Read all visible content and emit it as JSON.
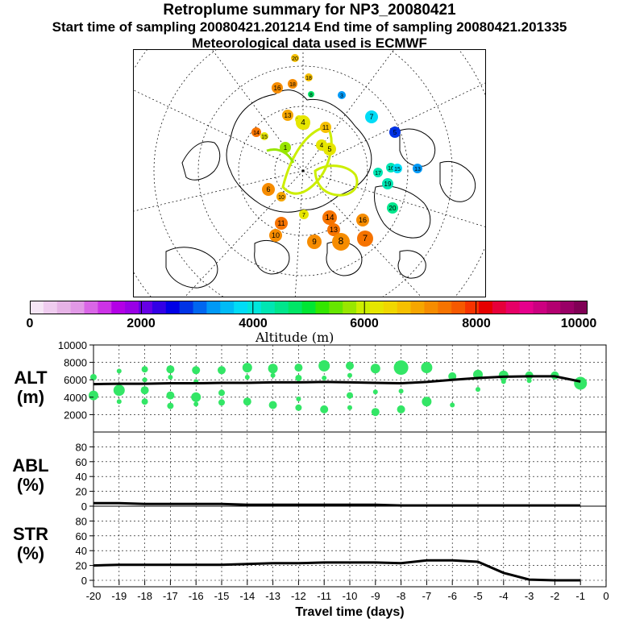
{
  "header": {
    "title": "Retroplume summary for NP3_20080421",
    "sampling_line": "Start time of sampling 20080421.201214     End time of sampling 20080421.201335",
    "met_line": "Meteorological data used is ECMWF"
  },
  "colorbar": {
    "label": "Altitude (m)",
    "tick_labels": [
      "0",
      "2000",
      "4000",
      "6000",
      "8000",
      "10000"
    ],
    "colors": [
      "#f6e6f6",
      "#efccef",
      "#e6b3e6",
      "#e199e6",
      "#d966e6",
      "#cc33e6",
      "#b300e6",
      "#9900e6",
      "#6600e6",
      "#3300e6",
      "#0000e6",
      "#0033e6",
      "#0066f0",
      "#0099f6",
      "#00bbf6",
      "#00dcf6",
      "#00e6dc",
      "#00e6b3",
      "#00e68c",
      "#00e666",
      "#00e633",
      "#33e600",
      "#66e600",
      "#99e600",
      "#ccee00",
      "#e6e600",
      "#f0d700",
      "#f6c000",
      "#f6a600",
      "#f68c00",
      "#f67300",
      "#f65900",
      "#f63300",
      "#e60000",
      "#e6003a",
      "#e60066",
      "#e6008c",
      "#cc0080",
      "#b30070",
      "#990066",
      "#800055"
    ]
  },
  "map_data": {
    "markers": [
      {
        "day": "20",
        "color": "#f6c000",
        "r": 5
      },
      {
        "day": "18",
        "color": "#f68c00",
        "r": 6
      },
      {
        "day": "16",
        "color": "#f68c00",
        "r": 7
      },
      {
        "day": "18",
        "color": "#f6c000",
        "r": 5
      },
      {
        "day": "8",
        "color": "#00e666",
        "r": 4
      },
      {
        "day": "3",
        "color": "#0099f6",
        "r": 5
      },
      {
        "day": "7",
        "color": "#00dcf6",
        "r": 8
      },
      {
        "day": "5",
        "color": "#0033e6",
        "r": 7
      },
      {
        "day": "13",
        "color": "#f6a600",
        "r": 7
      },
      {
        "day": "13",
        "color": "#e6e600",
        "r": 5
      },
      {
        "day": "12",
        "color": "#f6c000",
        "r": 6
      },
      {
        "day": "14",
        "color": "#f67300",
        "r": 6
      },
      {
        "day": "15",
        "color": "#e6e600",
        "r": 5
      },
      {
        "day": "4",
        "color": "#e6e600",
        "r": 9
      },
      {
        "day": "11",
        "color": "#f6c000",
        "r": 7
      },
      {
        "day": "16",
        "color": "#00e6b3",
        "r": 6
      },
      {
        "day": "15",
        "color": "#00dcf6",
        "r": 6
      },
      {
        "day": "13",
        "color": "#0099f6",
        "r": 6
      },
      {
        "day": "17",
        "color": "#00e6b3",
        "r": 6
      },
      {
        "day": "19",
        "color": "#00e6b3",
        "r": 7
      },
      {
        "day": "20",
        "color": "#00e68c",
        "r": 7
      },
      {
        "day": "16",
        "color": "#f68c00",
        "r": 8
      },
      {
        "day": "14",
        "color": "#f67300",
        "r": 9
      },
      {
        "day": "13",
        "color": "#f67300",
        "r": 8
      },
      {
        "day": "11",
        "color": "#f67300",
        "r": 8
      },
      {
        "day": "10",
        "color": "#f68c00",
        "r": 8
      },
      {
        "day": "9",
        "color": "#f68c00",
        "r": 9
      },
      {
        "day": "8",
        "color": "#f68c00",
        "r": 11
      },
      {
        "day": "7",
        "color": "#f67300",
        "r": 10
      },
      {
        "day": "6",
        "color": "#f68c00",
        "r": 8
      },
      {
        "day": "5",
        "color": "#e6e600",
        "r": 8
      },
      {
        "day": "4",
        "color": "#e6e600",
        "r": 7
      },
      {
        "day": "1",
        "color": "#99e600",
        "r": 7
      },
      {
        "day": "10",
        "color": "#f6a600",
        "r": 6
      },
      {
        "day": "7",
        "color": "#e6e600",
        "r": 6
      }
    ]
  },
  "chart_data": [
    {
      "type": "scatter",
      "panel": "ALT",
      "ylabel": "ALT\n(m)",
      "ylabel_lines": [
        "ALT",
        "(m)"
      ],
      "ylim": [
        0,
        10000
      ],
      "yticks": [
        "10000",
        "8000",
        "6000",
        "4000",
        "2000"
      ],
      "xlim": [
        -20,
        0
      ],
      "xticks": [
        "-20",
        "-19",
        "-18",
        "-17",
        "-16",
        "-15",
        "-14",
        "-13",
        "-12",
        "-11",
        "-10",
        "-9",
        "-8",
        "-7",
        "-6",
        "-5",
        "-4",
        "-3",
        "-2",
        "-1",
        "0"
      ],
      "median_line": {
        "x": [
          -20,
          -19,
          -18,
          -17,
          -16,
          -15,
          -14,
          -13,
          -12,
          -11,
          -10,
          -9,
          -8,
          -7,
          -6,
          -5,
          -4,
          -3,
          -2,
          -1
        ],
        "y": [
          5500,
          5550,
          5550,
          5600,
          5600,
          5650,
          5650,
          5700,
          5700,
          5750,
          5700,
          5650,
          5600,
          5750,
          6000,
          6200,
          6350,
          6400,
          6400,
          5800
        ]
      },
      "clusters": [
        {
          "x": -20,
          "y": 6300,
          "r": 4
        },
        {
          "x": -20,
          "y": 4200,
          "r": 6
        },
        {
          "x": -19,
          "y": 7000,
          "r": 3
        },
        {
          "x": -19,
          "y": 4800,
          "r": 7
        },
        {
          "x": -19,
          "y": 3500,
          "r": 3
        },
        {
          "x": -18,
          "y": 7200,
          "r": 4
        },
        {
          "x": -18,
          "y": 6000,
          "r": 3
        },
        {
          "x": -18,
          "y": 4800,
          "r": 5
        },
        {
          "x": -18,
          "y": 3500,
          "r": 4
        },
        {
          "x": -17,
          "y": 7200,
          "r": 5
        },
        {
          "x": -17,
          "y": 6300,
          "r": 3
        },
        {
          "x": -17,
          "y": 4200,
          "r": 5
        },
        {
          "x": -17,
          "y": 3000,
          "r": 4
        },
        {
          "x": -16,
          "y": 7100,
          "r": 5
        },
        {
          "x": -16,
          "y": 5800,
          "r": 3
        },
        {
          "x": -16,
          "y": 4000,
          "r": 6
        },
        {
          "x": -16,
          "y": 3200,
          "r": 3
        },
        {
          "x": -15,
          "y": 7100,
          "r": 5
        },
        {
          "x": -15,
          "y": 4500,
          "r": 4
        },
        {
          "x": -15,
          "y": 3400,
          "r": 4
        },
        {
          "x": -14,
          "y": 7400,
          "r": 6
        },
        {
          "x": -14,
          "y": 6300,
          "r": 3
        },
        {
          "x": -14,
          "y": 3500,
          "r": 5
        },
        {
          "x": -13,
          "y": 7300,
          "r": 6
        },
        {
          "x": -13,
          "y": 6500,
          "r": 3
        },
        {
          "x": -13,
          "y": 3100,
          "r": 5
        },
        {
          "x": -12,
          "y": 7400,
          "r": 5
        },
        {
          "x": -12,
          "y": 6200,
          "r": 4
        },
        {
          "x": -12,
          "y": 3800,
          "r": 3
        },
        {
          "x": -12,
          "y": 2800,
          "r": 4
        },
        {
          "x": -11,
          "y": 7600,
          "r": 7
        },
        {
          "x": -11,
          "y": 6200,
          "r": 3
        },
        {
          "x": -11,
          "y": 2600,
          "r": 5
        },
        {
          "x": -10,
          "y": 7600,
          "r": 5
        },
        {
          "x": -10,
          "y": 6500,
          "r": 3
        },
        {
          "x": -10,
          "y": 4200,
          "r": 4
        },
        {
          "x": -10,
          "y": 2800,
          "r": 3
        },
        {
          "x": -9,
          "y": 7300,
          "r": 6
        },
        {
          "x": -9,
          "y": 4600,
          "r": 3
        },
        {
          "x": -9,
          "y": 2300,
          "r": 5
        },
        {
          "x": -8,
          "y": 7400,
          "r": 9
        },
        {
          "x": -8,
          "y": 4700,
          "r": 3
        },
        {
          "x": -8,
          "y": 2600,
          "r": 5
        },
        {
          "x": -7,
          "y": 7400,
          "r": 7
        },
        {
          "x": -7,
          "y": 3500,
          "r": 6
        },
        {
          "x": -6,
          "y": 6400,
          "r": 5
        },
        {
          "x": -6,
          "y": 3100,
          "r": 3
        },
        {
          "x": -5,
          "y": 6600,
          "r": 6
        },
        {
          "x": -5,
          "y": 4900,
          "r": 3
        },
        {
          "x": -4,
          "y": 6500,
          "r": 6
        },
        {
          "x": -4,
          "y": 5800,
          "r": 3
        },
        {
          "x": -3,
          "y": 6500,
          "r": 5
        },
        {
          "x": -3,
          "y": 5900,
          "r": 3
        },
        {
          "x": -2,
          "y": 6500,
          "r": 5
        },
        {
          "x": -1,
          "y": 5600,
          "r": 8
        }
      ]
    },
    {
      "type": "line",
      "panel": "ABL",
      "ylabel": "ABL\n(%)",
      "ylabel_lines": [
        "ABL",
        "(%)"
      ],
      "ylim": [
        0,
        100
      ],
      "yticks": [
        "80",
        "60",
        "40",
        "20",
        "0"
      ],
      "x": [
        -20,
        -19,
        -18,
        -17,
        -16,
        -15,
        -14,
        -13,
        -12,
        -11,
        -10,
        -9,
        -8,
        -7,
        -6,
        -5,
        -4,
        -3,
        -2,
        -1
      ],
      "y": [
        4,
        4,
        3,
        3,
        3,
        3,
        2,
        2,
        2,
        2,
        2,
        2,
        1,
        1,
        1,
        1,
        1,
        1,
        1,
        1
      ]
    },
    {
      "type": "line",
      "panel": "STR",
      "ylabel": "STR\n(%)",
      "ylabel_lines": [
        "STR",
        "(%)"
      ],
      "ylim": [
        0,
        100
      ],
      "yticks": [
        "80",
        "60",
        "40",
        "20",
        "0"
      ],
      "xlabel": "Travel time (days)",
      "x": [
        -20,
        -19,
        -18,
        -17,
        -16,
        -15,
        -14,
        -13,
        -12,
        -11,
        -10,
        -9,
        -8,
        -7,
        -6,
        -5,
        -4,
        -3,
        -2,
        -1
      ],
      "y": [
        20,
        21,
        21,
        21,
        21,
        21,
        22,
        23,
        23,
        24,
        24,
        24,
        23,
        27,
        27,
        25,
        10,
        1,
        0,
        0
      ]
    }
  ]
}
